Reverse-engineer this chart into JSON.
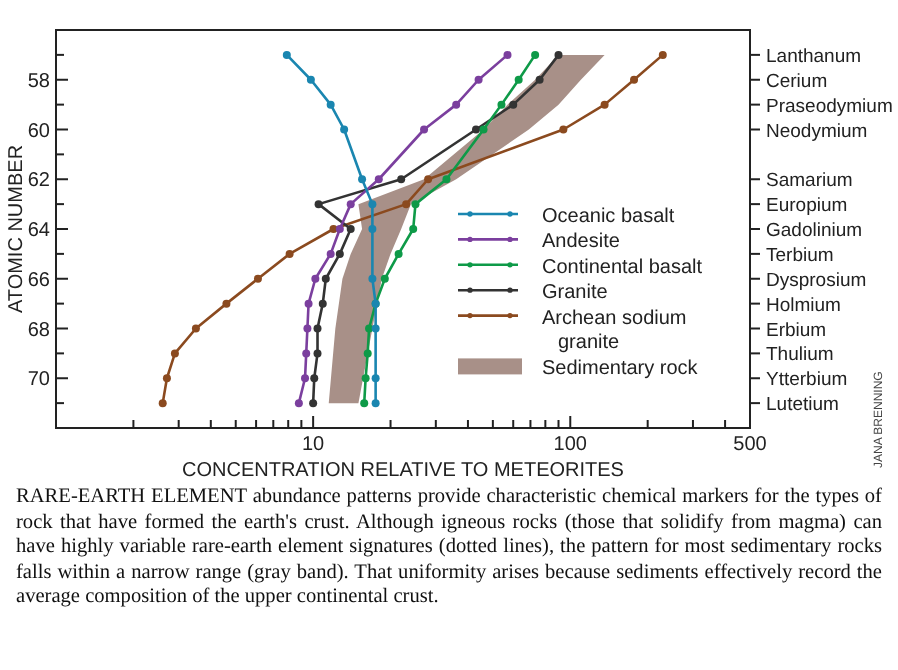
{
  "chart_data": {
    "type": "line",
    "xlabel": "CONCENTRATION RELATIVE TO METEORITES",
    "ylabel": "ATOMIC NUMBER",
    "log": "x",
    "xlim": [
      1,
      500
    ],
    "ylim": [
      72,
      56
    ],
    "xticks": [
      {
        "value": 2,
        "label": null
      },
      {
        "value": 3,
        "label": null
      },
      {
        "value": 4,
        "label": null
      },
      {
        "value": 5,
        "label": null
      },
      {
        "value": 6,
        "label": null
      },
      {
        "value": 7,
        "label": null
      },
      {
        "value": 8,
        "label": null
      },
      {
        "value": 9,
        "label": null
      },
      10,
      {
        "value": 20,
        "label": null
      },
      {
        "value": 30,
        "label": null
      },
      {
        "value": 40,
        "label": null
      },
      {
        "value": 50,
        "label": null
      },
      {
        "value": 60,
        "label": null
      },
      {
        "value": 70,
        "label": null
      },
      {
        "value": 80,
        "label": null
      },
      {
        "value": 90,
        "label": null
      },
      100,
      {
        "value": 200,
        "label": null
      },
      {
        "value": 300,
        "label": null
      },
      {
        "value": 400,
        "label": null
      },
      500
    ],
    "yticks": [
      {
        "value": 57,
        "label": null
      },
      58,
      {
        "value": 59,
        "label": null
      },
      60,
      {
        "value": 61,
        "label": null
      },
      62,
      {
        "value": 63,
        "label": null
      },
      64,
      {
        "value": 65,
        "label": null
      },
      66,
      {
        "value": 67,
        "label": null
      },
      68,
      {
        "value": 69,
        "label": null
      },
      70,
      {
        "value": 71,
        "label": null
      }
    ],
    "y2_categories": [
      "Lanthanum",
      "Cerium",
      "Praseodymium",
      "Neodymium",
      null,
      "Samarium",
      "Europium",
      "Gadolinium",
      "Terbium",
      "Dysprosium",
      "Holmium",
      "Erbium",
      "Thulium",
      "Ytterbium",
      "Lutetium"
    ],
    "grid": false,
    "legend": "right",
    "marker": "circle",
    "line_style": "solid",
    "series": [
      {
        "name": "Oceanic basalt",
        "color": "#1a86b0",
        "x": [
          7.9,
          9.8,
          11.7,
          13.2,
          15.5,
          17,
          17,
          17,
          17.5,
          17.5,
          17.5,
          17.5
        ],
        "values": [
          57,
          58,
          59,
          60,
          62,
          63,
          64,
          66,
          67,
          68,
          70,
          71
        ]
      },
      {
        "name": "Andesite",
        "color": "#7b3f9e",
        "x": [
          57,
          44,
          36,
          27,
          18,
          14,
          12.7,
          11.7,
          10.2,
          9.6,
          9.5,
          9.4,
          9.3,
          8.8
        ],
        "values": [
          57,
          58,
          59,
          60,
          62,
          63,
          64,
          65,
          66,
          67,
          68,
          69,
          70,
          71
        ]
      },
      {
        "name": "Continental basalt",
        "color": "#0e9a48",
        "x": [
          73,
          63,
          54,
          46,
          33,
          25,
          24.5,
          21.5,
          19,
          17.5,
          16.5,
          16.3,
          16,
          15.8
        ],
        "values": [
          57,
          58,
          59,
          60,
          62,
          63,
          64,
          65,
          66,
          67,
          68,
          69,
          70,
          71
        ]
      },
      {
        "name": "Granite",
        "color": "#333333",
        "x": [
          90,
          76,
          60,
          43,
          22,
          10.5,
          14,
          12.7,
          11.2,
          10.9,
          10.4,
          10.4,
          10.1,
          10
        ],
        "values": [
          57,
          58,
          59,
          60,
          62,
          63,
          64,
          65,
          66,
          67,
          68,
          69,
          70,
          71
        ]
      },
      {
        "name": "Archean sodium granite",
        "color": "#8b4a1f",
        "x": [
          229,
          177,
          136,
          94,
          28,
          23,
          12,
          8.1,
          6.1,
          4.6,
          3.5,
          2.9,
          2.7,
          2.6
        ],
        "values": [
          57,
          58,
          59,
          60,
          62,
          63,
          64,
          65,
          66,
          67,
          68,
          69,
          70,
          71
        ]
      },
      {
        "name": "Sedimentary rock",
        "type": "area",
        "marker": "none",
        "color": "#a89088",
        "x": [
          90,
          73,
          57,
          46,
          27,
          15,
          15.5,
          14,
          13,
          12.2,
          11.5,
          15,
          17,
          18.5,
          20,
          22,
          24,
          36,
          69,
          90,
          110,
          136
        ],
        "values": [
          57,
          58,
          59,
          60,
          62,
          63,
          64,
          65,
          66,
          68,
          71,
          71,
          68,
          66,
          65,
          64,
          63,
          62,
          60,
          59,
          58,
          57
        ]
      }
    ],
    "annotations": [
      "RARE-EARTH ELEMENT abundance patterns provide characteristic chemical markers for the types of rock that have formed the earth's crust. Although igneous rocks (those that solidify from magma) can have highly variable rare-earth element signatures (dotted lines), the pattern for most sedimentary rocks falls within a narrow range (gray band). That uniformity arises because sediments effectively record the average composition of the upper continental crust.",
      "JANA BRENNING"
    ]
  }
}
